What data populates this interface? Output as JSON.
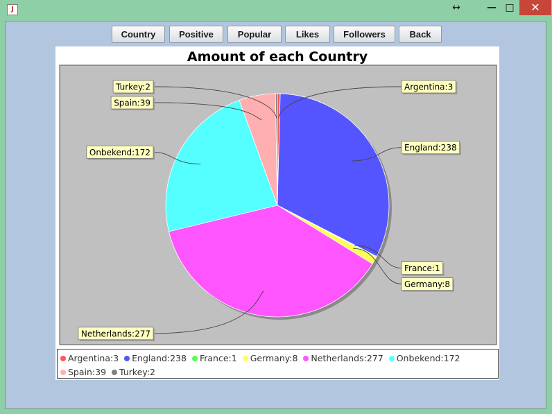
{
  "window": {
    "resize_glyph": "↔",
    "minimize_glyph": "—",
    "maximize_glyph": "□",
    "close_glyph": "✕",
    "app_icon_glyph": "J"
  },
  "toolbar": {
    "buttons": [
      {
        "label": "Country"
      },
      {
        "label": "Positive"
      },
      {
        "label": "Popular"
      },
      {
        "label": "Likes"
      },
      {
        "label": "Followers"
      },
      {
        "label": "Back"
      }
    ]
  },
  "chart_data": {
    "type": "pie",
    "title": "Amount of each Country",
    "plot_background": "#c0c0c0",
    "legend_position": "bottom",
    "slices": [
      {
        "label": "Argentina",
        "value": 3,
        "color": "#ff5555",
        "display": "Argentina:3"
      },
      {
        "label": "England",
        "value": 238,
        "color": "#5555ff",
        "display": "England:238"
      },
      {
        "label": "France",
        "value": 1,
        "color": "#55ff55",
        "display": "France:1"
      },
      {
        "label": "Germany",
        "value": 8,
        "color": "#ffff55",
        "display": "Germany:8"
      },
      {
        "label": "Netherlands",
        "value": 277,
        "color": "#ff55ff",
        "display": "Netherlands:277"
      },
      {
        "label": "Onbekend",
        "value": 172,
        "color": "#55ffff",
        "display": "Onbekend:172"
      },
      {
        "label": "Spain",
        "value": 39,
        "color": "#ffafaf",
        "display": "Spain:39"
      },
      {
        "label": "Turkey",
        "value": 2,
        "color": "#808080",
        "display": "Turkey:2"
      }
    ]
  }
}
